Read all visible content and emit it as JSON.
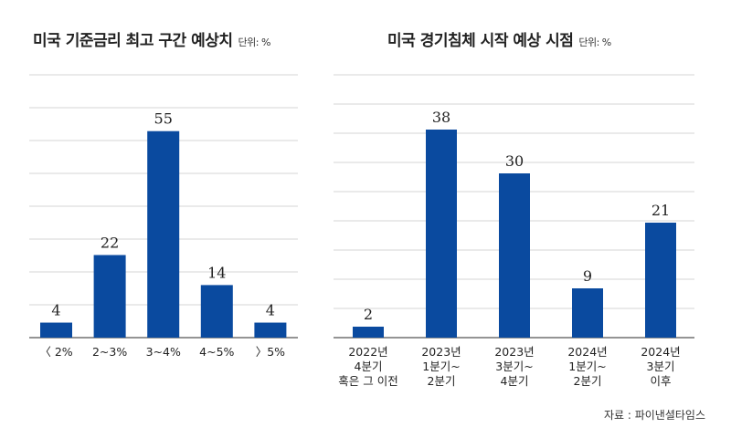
{
  "colors": {
    "bar": "#0a4a9f",
    "grid": "#d4d4d4",
    "axis": "#555555"
  },
  "source": "자료 : 파이낸셜타임스",
  "chart_data": [
    {
      "type": "bar",
      "title": "미국 기준금리 최고 구간 예상치",
      "unit": "단위: %",
      "categories": [
        "〈 2%",
        "2~3%",
        "3~4%",
        "4~5%",
        "〉5%"
      ],
      "values": [
        4,
        22,
        55,
        14,
        4
      ],
      "ylim": [
        0,
        70
      ],
      "grid": true
    },
    {
      "type": "bar",
      "title": "미국 경기침체 시작 예상 시점",
      "unit": "단위: %",
      "categories": [
        [
          "2022년",
          "4분기",
          "혹은 그 이전"
        ],
        [
          "2023년",
          "1분기~",
          "2분기"
        ],
        [
          "2023년",
          "3분기~",
          "4분기"
        ],
        [
          "2024년",
          "1분기~",
          "2분기"
        ],
        [
          "2024년",
          "3분기",
          "이후"
        ]
      ],
      "values": [
        2,
        38,
        30,
        9,
        21
      ],
      "ylim": [
        0,
        48
      ],
      "grid": true
    }
  ]
}
